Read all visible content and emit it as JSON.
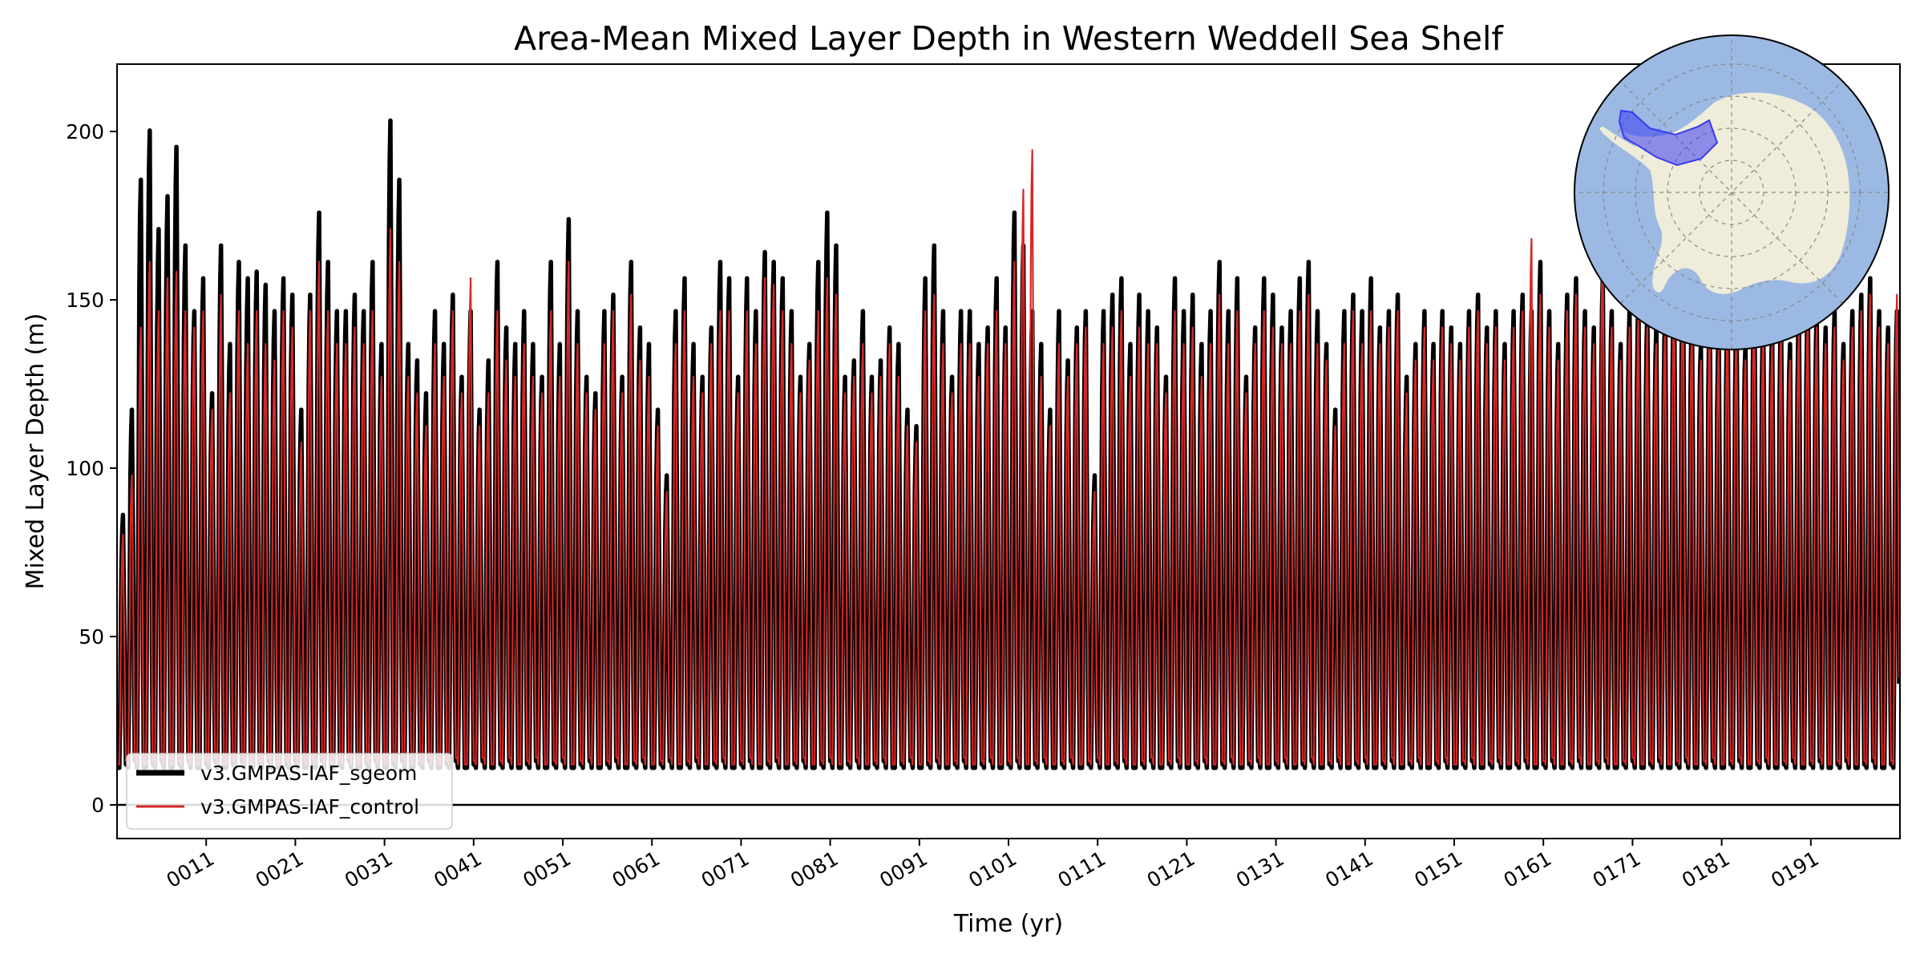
{
  "chart_data": {
    "type": "line",
    "title": "Area-Mean Mixed Layer Depth in Western Weddell Sea Shelf",
    "xlabel": "Time (yr)",
    "ylabel": "Mixed Layer Depth (m)",
    "xlim": [
      1,
      201
    ],
    "ylim": [
      -10,
      220
    ],
    "x_ticks": [
      11,
      21,
      31,
      41,
      51,
      61,
      71,
      81,
      91,
      101,
      111,
      121,
      131,
      141,
      151,
      161,
      171,
      181,
      191
    ],
    "x_tick_labels": [
      "0011",
      "0021",
      "0031",
      "0041",
      "0051",
      "0061",
      "0071",
      "0081",
      "0091",
      "0101",
      "0111",
      "0121",
      "0131",
      "0141",
      "0151",
      "0161",
      "0171",
      "0181",
      "0191"
    ],
    "y_ticks": [
      0,
      50,
      100,
      150,
      200
    ],
    "y_tick_labels": [
      "0",
      "50",
      "100",
      "150",
      "200"
    ],
    "reference_line_y": 0,
    "legend_position": "lower-left",
    "sampling": "monthly; annual winter maxima listed below, minima ~10 m",
    "series": [
      {
        "name": "v3.GMPAS-IAF_sgeom",
        "color": "#000000",
        "summer_min": 11,
        "annual_max": [
          88,
          120,
          190,
          205,
          175,
          185,
          200,
          170,
          150,
          160,
          125,
          170,
          140,
          165,
          160,
          162,
          158,
          150,
          160,
          155,
          120,
          155,
          180,
          165,
          150,
          150,
          155,
          150,
          165,
          140,
          208,
          190,
          140,
          135,
          125,
          150,
          140,
          155,
          130,
          150,
          120,
          135,
          165,
          145,
          140,
          150,
          140,
          130,
          165,
          140,
          178,
          150,
          130,
          125,
          150,
          155,
          130,
          165,
          145,
          140,
          120,
          100,
          150,
          160,
          140,
          130,
          145,
          165,
          160,
          130,
          160,
          150,
          168,
          165,
          160,
          150,
          130,
          140,
          165,
          180,
          170,
          130,
          135,
          150,
          130,
          135,
          145,
          140,
          120,
          115,
          160,
          170,
          150,
          130,
          150,
          150,
          140,
          145,
          160,
          145,
          180,
          170,
          150,
          140,
          120,
          150,
          135,
          145,
          150,
          100,
          150,
          155,
          160,
          140,
          155,
          150,
          145,
          130,
          160,
          150,
          155,
          140,
          150,
          165,
          150,
          160,
          130,
          145,
          160,
          155,
          145,
          150,
          160,
          165,
          150,
          140,
          120,
          150,
          155,
          150,
          160,
          145,
          150,
          155,
          130,
          140,
          150,
          140,
          150,
          145,
          140,
          150,
          155,
          145,
          150,
          140,
          150,
          155,
          150,
          165,
          150,
          140,
          155,
          160,
          150,
          145,
          160,
          150,
          140,
          150,
          155,
          150,
          145,
          150,
          160,
          165,
          150,
          140,
          150,
          145,
          155,
          150,
          140,
          160,
          150,
          145,
          150,
          140,
          150,
          155,
          150,
          145,
          150,
          140,
          150,
          155,
          160,
          150,
          145,
          150
        ]
      },
      {
        "name": "v3.GMPAS-IAF_control",
        "color": "#d62728",
        "summer_min": 12,
        "annual_max": [
          82,
          100,
          145,
          165,
          150,
          160,
          162,
          150,
          145,
          150,
          120,
          155,
          125,
          150,
          140,
          150,
          140,
          135,
          150,
          145,
          110,
          150,
          165,
          150,
          140,
          140,
          145,
          140,
          150,
          130,
          175,
          165,
          130,
          125,
          115,
          140,
          130,
          150,
          125,
          160,
          115,
          125,
          150,
          135,
          130,
          140,
          130,
          125,
          150,
          130,
          165,
          140,
          125,
          120,
          140,
          150,
          125,
          155,
          135,
          130,
          115,
          95,
          140,
          150,
          130,
          125,
          140,
          150,
          150,
          125,
          150,
          140,
          160,
          158,
          150,
          140,
          125,
          135,
          150,
          160,
          155,
          125,
          130,
          140,
          125,
          130,
          140,
          130,
          115,
          110,
          150,
          155,
          140,
          125,
          140,
          140,
          130,
          140,
          150,
          140,
          165,
          187,
          199,
          130,
          115,
          140,
          130,
          140,
          145,
          95,
          140,
          145,
          150,
          130,
          145,
          140,
          140,
          125,
          150,
          140,
          145,
          130,
          140,
          155,
          140,
          150,
          125,
          140,
          150,
          145,
          140,
          140,
          150,
          155,
          140,
          135,
          115,
          140,
          150,
          140,
          150,
          140,
          145,
          150,
          125,
          135,
          145,
          135,
          145,
          140,
          135,
          145,
          150,
          140,
          145,
          135,
          145,
          150,
          172,
          155,
          145,
          135,
          150,
          155,
          145,
          140,
          170,
          145,
          135,
          145,
          150,
          145,
          140,
          145,
          155,
          160,
          145,
          135,
          145,
          140,
          150,
          145,
          135,
          155,
          145,
          140,
          145,
          135,
          145,
          150,
          145,
          140,
          145,
          135,
          145,
          150,
          155,
          145,
          140,
          155
        ]
      }
    ]
  },
  "inset_map": {
    "ocean_color": "#9bb9e2",
    "land_color": "#efedda",
    "region_color": "#3a3af0"
  }
}
